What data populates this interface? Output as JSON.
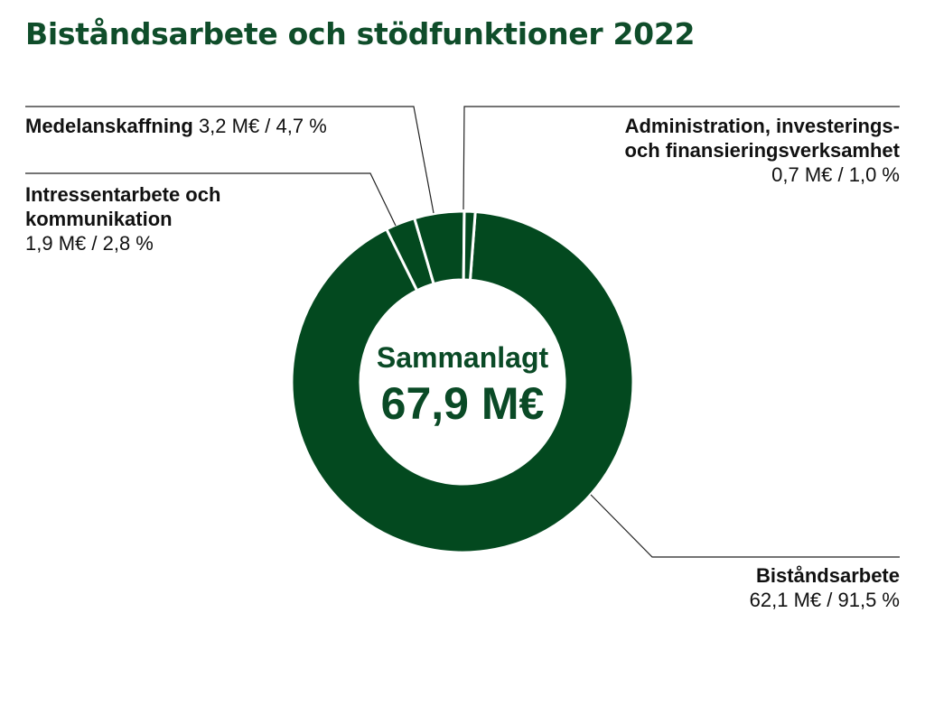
{
  "chart_data": {
    "type": "pie",
    "variant": "donut",
    "title": "Biståndsarbete och stödfunktioner 2022",
    "center_label": [
      "Sammanlagt",
      "67,9 M€"
    ],
    "total": 67.9,
    "unit": "M€",
    "slices": [
      {
        "name_lines": [
          "Biståndsarbete"
        ],
        "value": 62.1,
        "percent": 91.5,
        "value_text": "62,1 M€ / 91,5 %"
      },
      {
        "name_lines": [
          "Intressentarbete och",
          "kommunikation"
        ],
        "value": 1.9,
        "percent": 2.8,
        "value_text": "1,9 M€ / 2,8 %"
      },
      {
        "name_lines": [
          "Medelanskaffning"
        ],
        "value": 3.2,
        "percent": 4.7,
        "value_text": "3,2 M€ / 4,7 %"
      },
      {
        "name_lines": [
          "Administration, investerings-",
          "och finansieringsverksamhet"
        ],
        "value": 0.7,
        "percent": 1.0,
        "value_text": "0,7 M€ / 1,0 %"
      }
    ],
    "colors": {
      "slice": "#03491f",
      "title": "#0f4d2a",
      "leader": "#222222"
    },
    "legend": "none"
  }
}
